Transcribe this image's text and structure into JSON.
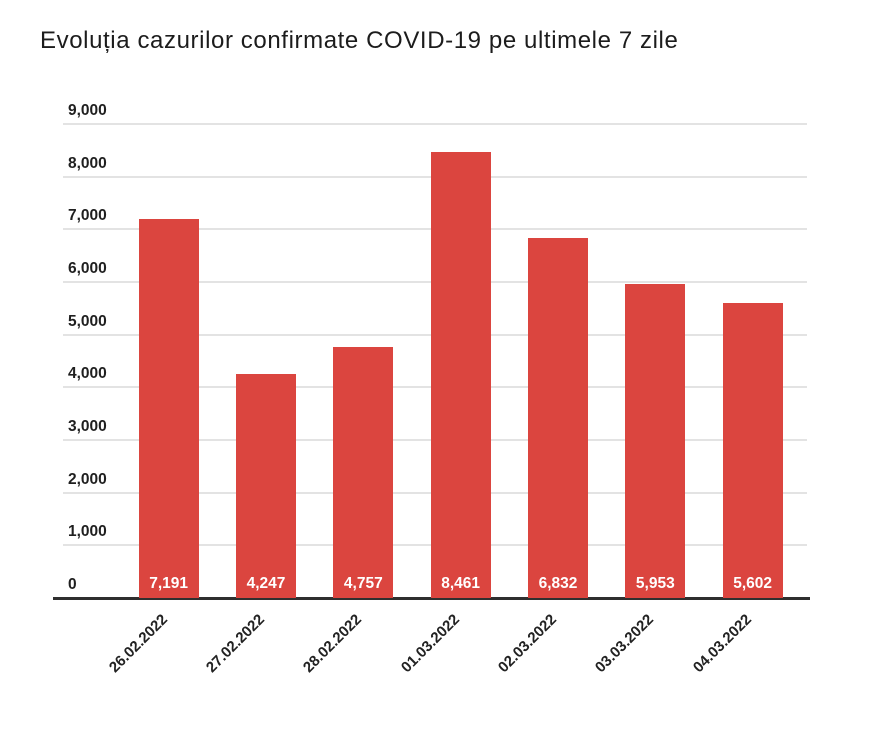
{
  "page": {
    "background": "#ffffff"
  },
  "chart_data": {
    "type": "bar",
    "title": "Evoluția cazurilor confirmate COVID-19 pe ultimele 7 zile",
    "categories": [
      "26.02.2022",
      "27.02.2022",
      "28.02.2022",
      "01.03.2022",
      "02.03.2022",
      "03.03.2022",
      "04.03.2022"
    ],
    "values": [
      7191,
      4247,
      4757,
      8461,
      6832,
      5953,
      5602
    ],
    "value_labels": [
      "7,191",
      "4,247",
      "4,757",
      "8,461",
      "6,832",
      "5,953",
      "5,602"
    ],
    "y_ticks": [
      {
        "value": 0,
        "label": "0"
      },
      {
        "value": 1000,
        "label": "1,000"
      },
      {
        "value": 2000,
        "label": "2,000"
      },
      {
        "value": 3000,
        "label": "3,000"
      },
      {
        "value": 4000,
        "label": "4,000"
      },
      {
        "value": 5000,
        "label": "5,000"
      },
      {
        "value": 6000,
        "label": "6,000"
      },
      {
        "value": 7000,
        "label": "7,000"
      },
      {
        "value": 8000,
        "label": "8,000"
      },
      {
        "value": 9000,
        "label": "9,000"
      }
    ],
    "ylim": [
      0,
      9000
    ],
    "xlabel": "",
    "ylabel": "",
    "grid": true,
    "legend": "none",
    "colors": {
      "bar": "#db453f",
      "grid_line": "#e3e3e3",
      "axis_line": "#2f2f2f",
      "title_text": "#1c1c1c",
      "tick_text": "#1f1f1f",
      "date_text": "#222222",
      "bar_label_text": "#ffffff"
    }
  }
}
